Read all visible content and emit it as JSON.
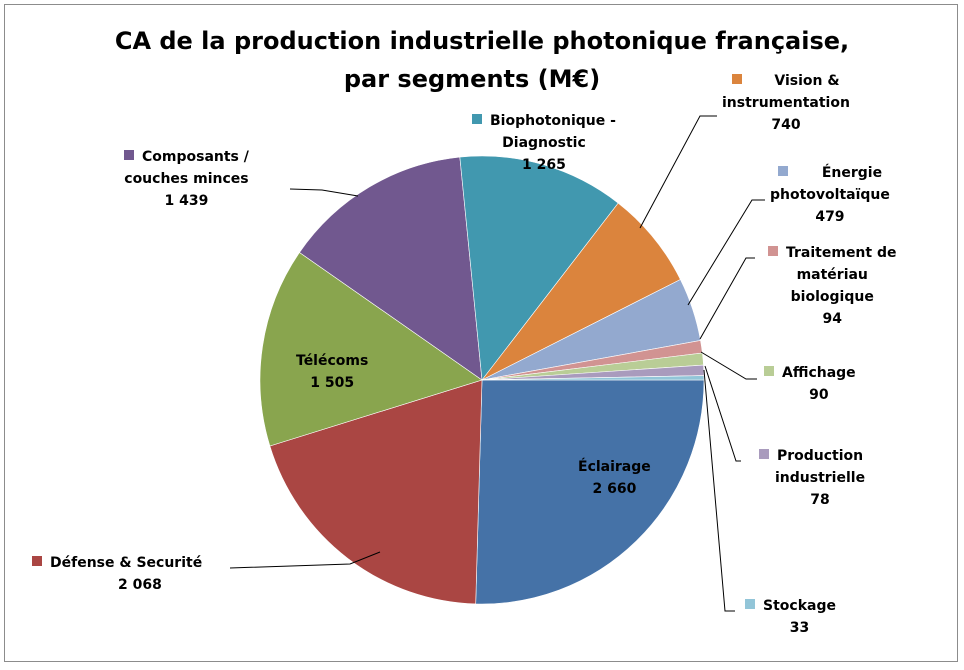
{
  "chart": {
    "title_line1": "CA de la production industrielle photonique française,",
    "title_line2": "par segments (M€)"
  },
  "labels": [
    {
      "name_line1": "Éclairage",
      "name_line2": "",
      "name_line3": "",
      "value": "2 660"
    },
    {
      "name_line1": "Défense & Securité",
      "name_line2": "",
      "name_line3": "",
      "value": "2 068"
    },
    {
      "name_line1": "Télécoms",
      "name_line2": "",
      "name_line3": "",
      "value": "1 505"
    },
    {
      "name_line1": "Composants /",
      "name_line2": "couches minces",
      "name_line3": "",
      "value": "1 439"
    },
    {
      "name_line1": "Biophotonique -",
      "name_line2": "Diagnostic",
      "name_line3": "",
      "value": "1 265"
    },
    {
      "name_line1": "Vision &",
      "name_line2": "instrumentation",
      "name_line3": "",
      "value": "740"
    },
    {
      "name_line1": "Énergie",
      "name_line2": "photovoltaïque",
      "name_line3": "",
      "value": "479"
    },
    {
      "name_line1": "Traitement de",
      "name_line2": "matériau",
      "name_line3": "biologique",
      "value": "94"
    },
    {
      "name_line1": "Affichage",
      "name_line2": "",
      "name_line3": "",
      "value": "90"
    },
    {
      "name_line1": "Production",
      "name_line2": "industrielle",
      "name_line3": "",
      "value": "78"
    },
    {
      "name_line1": "Stockage",
      "name_line2": "",
      "name_line3": "",
      "value": "33"
    }
  ],
  "chart_data": {
    "type": "pie",
    "title": "CA de la production industrielle photonique française, par segments (M€)",
    "unit": "M€",
    "categories": [
      "Éclairage",
      "Défense & Securité",
      "Télécoms",
      "Composants / couches minces",
      "Biophotonique - Diagnostic",
      "Vision & instrumentation",
      "Énergie photovoltaïque",
      "Traitement de matériau biologique",
      "Affichage",
      "Production industrielle",
      "Stockage"
    ],
    "values": [
      2660,
      2068,
      1505,
      1439,
      1265,
      740,
      479,
      94,
      90,
      78,
      33
    ],
    "colors": [
      "#4572a7",
      "#aa4643",
      "#89a54e",
      "#71588f",
      "#4198af",
      "#db843d",
      "#93a9cf",
      "#d19392",
      "#b9cd96",
      "#a99bbd",
      "#92c5d8"
    ],
    "start_angle_deg": 0,
    "direction": "clockwise-from-3-oclock",
    "legend": "data labels with leader lines"
  }
}
